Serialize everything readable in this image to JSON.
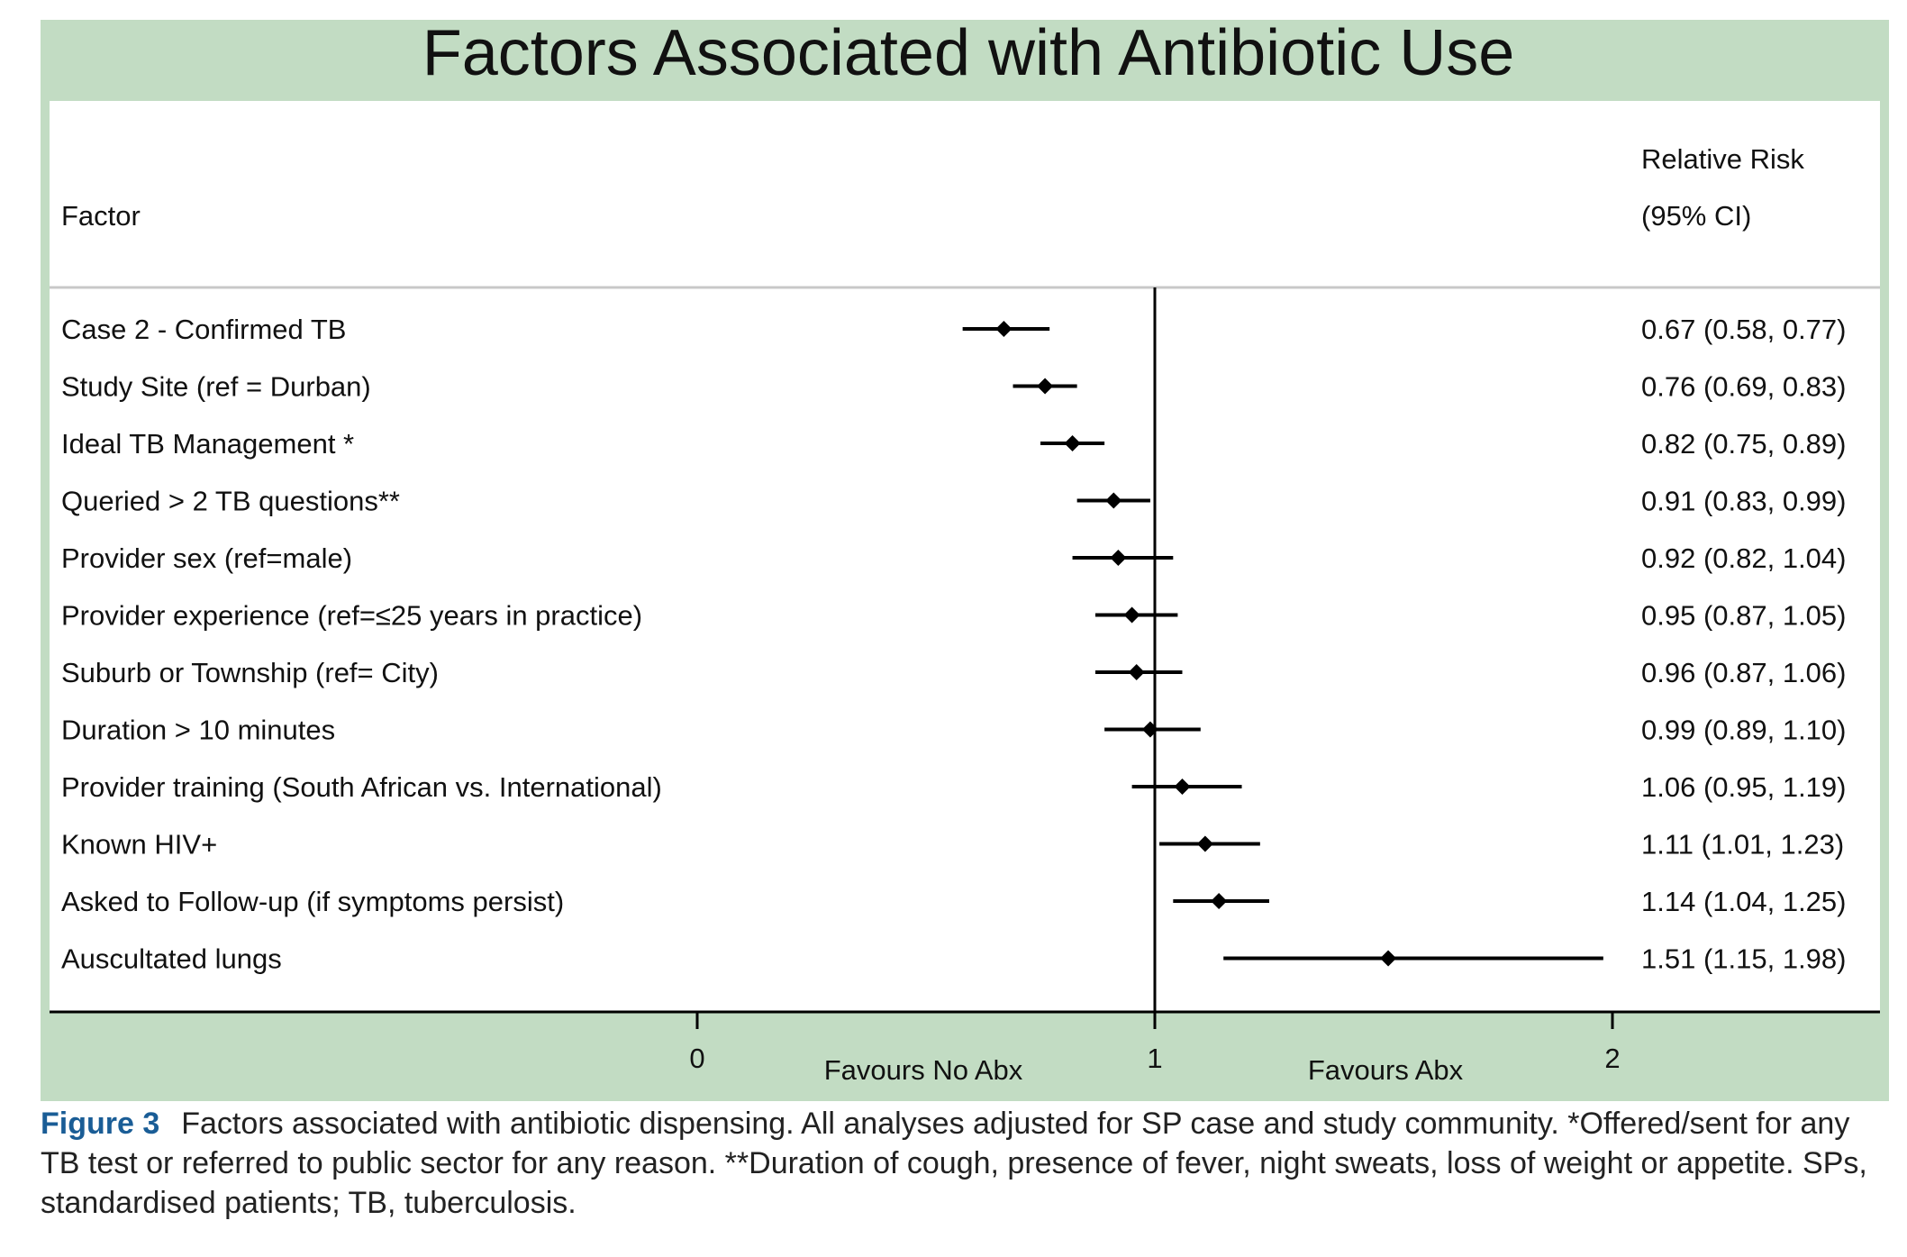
{
  "chart_data": {
    "type": "forest",
    "title": "Factors Associated with Antibiotic Use",
    "factor_header": "Factor",
    "rr_header_line1": "Relative Risk",
    "rr_header_line2": "(95% CI)",
    "reference_line": 1,
    "xlim": [
      0,
      2
    ],
    "x_ticks": [
      "0",
      "1",
      "2"
    ],
    "x_tick_values": [
      0,
      1,
      2
    ],
    "left_label": "Favours No Abx",
    "right_label": "Favours Abx",
    "rows": [
      {
        "factor": "Case 2 - Confirmed TB",
        "rr": 0.67,
        "lo": 0.58,
        "hi": 0.77,
        "label": "0.67 (0.58, 0.77)"
      },
      {
        "factor": "Study Site (ref = Durban)",
        "rr": 0.76,
        "lo": 0.69,
        "hi": 0.83,
        "label": "0.76 (0.69, 0.83)"
      },
      {
        "factor": "Ideal TB Management *",
        "rr": 0.82,
        "lo": 0.75,
        "hi": 0.89,
        "label": "0.82 (0.75, 0.89)"
      },
      {
        "factor": "Queried > 2 TB questions**",
        "rr": 0.91,
        "lo": 0.83,
        "hi": 0.99,
        "label": "0.91 (0.83, 0.99)"
      },
      {
        "factor": "Provider sex (ref=male)",
        "rr": 0.92,
        "lo": 0.82,
        "hi": 1.04,
        "label": "0.92 (0.82, 1.04)"
      },
      {
        "factor": "Provider experience (ref=≤25 years in practice)",
        "rr": 0.95,
        "lo": 0.87,
        "hi": 1.05,
        "label": "0.95 (0.87, 1.05)"
      },
      {
        "factor": "Suburb or Township (ref= City)",
        "rr": 0.96,
        "lo": 0.87,
        "hi": 1.06,
        "label": "0.96 (0.87, 1.06)"
      },
      {
        "factor": "Duration > 10 minutes",
        "rr": 0.99,
        "lo": 0.89,
        "hi": 1.1,
        "label": "0.99 (0.89, 1.10)"
      },
      {
        "factor": "Provider training (South African vs. International)",
        "rr": 1.06,
        "lo": 0.95,
        "hi": 1.19,
        "label": "1.06 (0.95, 1.19)"
      },
      {
        "factor": "Known HIV+",
        "rr": 1.11,
        "lo": 1.01,
        "hi": 1.23,
        "label": "1.11 (1.01, 1.23)"
      },
      {
        "factor": "Asked to Follow-up (if symptoms persist)",
        "rr": 1.14,
        "lo": 1.04,
        "hi": 1.25,
        "label": "1.14 (1.04, 1.25)"
      },
      {
        "factor": "Auscultated lungs",
        "rr": 1.51,
        "lo": 1.15,
        "hi": 1.98,
        "label": "1.51 (1.15, 1.98)"
      }
    ],
    "colors": {
      "frame": "#c2dcc3",
      "panel": "#ffffff",
      "marks": "#000000",
      "caption_label": "#1a5d96"
    }
  },
  "caption": {
    "label": "Figure 3",
    "text": "Factors associated with antibiotic dispensing. All analyses adjusted for SP case and study community. *Offered/sent for any TB test or referred to public sector for any reason. **Duration of cough, presence of fever, night sweats, loss of weight or appetite. SPs, standardised patients; TB, tuberculosis."
  }
}
